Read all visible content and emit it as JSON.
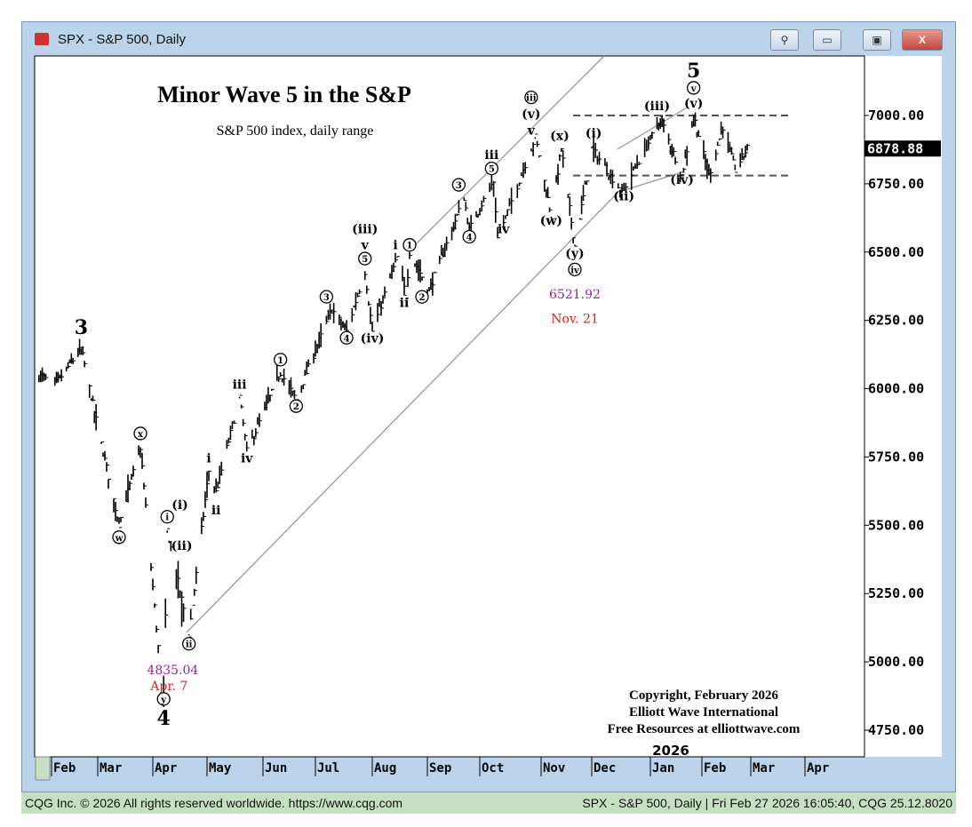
{
  "window": {
    "title": "SPX - S&P 500, Daily",
    "buttons": {
      "link": "⚲",
      "minimize": "▭",
      "maximize": "▣",
      "close": "X"
    }
  },
  "status": {
    "left": "CQG Inc. © 2026 All rights reserved worldwide. https://www.cqg.com",
    "right": "SPX - S&P 500, Daily | Fri Feb 27 2026 16:05:40, CQG 25.12.8020"
  },
  "chart_data": {
    "type": "bar",
    "title": "Minor Wave 5 in the S&P",
    "subtitle": "S&P 500 index, daily range",
    "copyright": [
      "Copyright, February 2026",
      "Elliott Wave International",
      "Free Resources at elliottwave.com"
    ],
    "year_label": "2026",
    "ylim": [
      4700,
      7200
    ],
    "yticks": [
      "4750.00",
      "5000.00",
      "5250.00",
      "5500.00",
      "5750.00",
      "6000.00",
      "6250.00",
      "6500.00",
      "6750.00",
      "7000.00"
    ],
    "last_price": "6878.88",
    "xticks": [
      "Feb",
      "Mar",
      "Apr",
      "May",
      "Jun",
      "Jul",
      "Aug",
      "Sep",
      "Oct",
      "Nov",
      "Dec",
      "Jan",
      "Feb",
      "Mar",
      "Apr"
    ],
    "pivots": [
      [
        "2025-01-27",
        6050
      ],
      [
        "2025-02-04",
        6020
      ],
      [
        "2025-02-19",
        6147
      ],
      [
        "2025-03-13",
        5505
      ],
      [
        "2025-03-25",
        5786
      ],
      [
        "2025-04-07",
        4835
      ],
      [
        "2025-04-09",
        5481
      ],
      [
        "2025-04-21",
        5101
      ],
      [
        "2025-05-02",
        5700
      ],
      [
        "2025-05-06",
        5620
      ],
      [
        "2025-05-19",
        5970
      ],
      [
        "2025-05-23",
        5770
      ],
      [
        "2025-06-11",
        6060
      ],
      [
        "2025-06-20",
        5960
      ],
      [
        "2025-07-10",
        6290
      ],
      [
        "2025-07-18",
        6210
      ],
      [
        "2025-07-28",
        6430
      ],
      [
        "2025-08-01",
        6210
      ],
      [
        "2025-08-15",
        6480
      ],
      [
        "2025-08-20",
        6340
      ],
      [
        "2025-08-22",
        6500
      ],
      [
        "2025-09-02",
        6360
      ],
      [
        "2025-09-22",
        6700
      ],
      [
        "2025-09-25",
        6580
      ],
      [
        "2025-10-08",
        6760
      ],
      [
        "2025-10-10",
        6550
      ],
      [
        "2025-10-29",
        6920
      ],
      [
        "2025-11-07",
        6630
      ],
      [
        "2025-11-13",
        6880
      ],
      [
        "2025-11-21",
        6522
      ],
      [
        "2025-12-01",
        6880
      ],
      [
        "2025-12-17",
        6720
      ],
      [
        "2026-01-07",
        6990
      ],
      [
        "2026-01-20",
        6780
      ],
      [
        "2026-01-27",
        7002
      ],
      [
        "2026-02-05",
        6780
      ],
      [
        "2026-02-13",
        6960
      ],
      [
        "2026-02-20",
        6800
      ],
      [
        "2026-02-27",
        6879
      ]
    ],
    "annotations": [
      {
        "d": "2025-02-19",
        "p": 6200,
        "t": "3",
        "s": "big"
      },
      {
        "d": "2025-04-07",
        "p": 4770,
        "t": "4",
        "s": "big"
      },
      {
        "d": "2026-01-27",
        "p": 7140,
        "t": "5",
        "s": "big"
      },
      {
        "d": "2025-03-13",
        "p": 5440,
        "t": "w",
        "s": "circ"
      },
      {
        "d": "2025-03-25",
        "p": 5820,
        "t": "x",
        "s": "circ"
      },
      {
        "d": "2025-04-07",
        "p": 4790,
        "t": "y",
        "s": "circ"
      },
      {
        "d": "2025-04-09",
        "p": 5515,
        "t": "i",
        "s": "circ"
      },
      {
        "d": "2025-04-21",
        "p": 5050,
        "t": "ii",
        "s": "circ"
      },
      {
        "d": "2025-04-16",
        "p": 5560,
        "t": "(i)",
        "s": "plain"
      },
      {
        "d": "2025-04-17",
        "p": 5410,
        "t": "(ii)",
        "s": "plain"
      },
      {
        "d": "2025-05-02",
        "p": 5730,
        "t": "i",
        "s": "plain"
      },
      {
        "d": "2025-05-06",
        "p": 5540,
        "t": "ii",
        "s": "plain"
      },
      {
        "d": "2025-05-19",
        "p": 6000,
        "t": "iii",
        "s": "plain"
      },
      {
        "d": "2025-05-23",
        "p": 5730,
        "t": "iv",
        "s": "plain"
      },
      {
        "d": "2025-06-11",
        "p": 6090,
        "t": "1",
        "s": "circ"
      },
      {
        "d": "2025-06-20",
        "p": 5920,
        "t": "2",
        "s": "circ"
      },
      {
        "d": "2025-07-07",
        "p": 6320,
        "t": "3",
        "s": "circ"
      },
      {
        "d": "2025-07-18",
        "p": 6170,
        "t": "4",
        "s": "circ"
      },
      {
        "d": "2025-07-28",
        "p": 6460,
        "t": "5",
        "s": "circ"
      },
      {
        "d": "2025-07-28",
        "p": 6510,
        "t": "v",
        "s": "plain"
      },
      {
        "d": "2025-07-28",
        "p": 6560,
        "t": "(iii)",
        "s": "plain"
      },
      {
        "d": "2025-08-01",
        "p": 6170,
        "t": "(iv)",
        "s": "plain"
      },
      {
        "d": "2025-08-14",
        "p": 6510,
        "t": "i",
        "s": "plain"
      },
      {
        "d": "2025-08-19",
        "p": 6300,
        "t": "ii",
        "s": "plain"
      },
      {
        "d": "2025-08-22",
        "p": 6510,
        "t": "1",
        "s": "circ"
      },
      {
        "d": "2025-08-29",
        "p": 6320,
        "t": "2",
        "s": "circ"
      },
      {
        "d": "2025-09-19",
        "p": 6730,
        "t": "3",
        "s": "circ"
      },
      {
        "d": "2025-09-25",
        "p": 6540,
        "t": "4",
        "s": "circ"
      },
      {
        "d": "2025-10-07",
        "p": 6790,
        "t": "5",
        "s": "circ"
      },
      {
        "d": "2025-10-07",
        "p": 6840,
        "t": "iii",
        "s": "plain"
      },
      {
        "d": "2025-10-13",
        "p": 6570,
        "t": "iv",
        "s": "plain"
      },
      {
        "d": "2025-10-27",
        "p": 6930,
        "t": "v",
        "s": "plain"
      },
      {
        "d": "2025-10-27",
        "p": 6990,
        "t": "(v)",
        "s": "plain"
      },
      {
        "d": "2025-10-27",
        "p": 7050,
        "t": "iii",
        "s": "circ"
      },
      {
        "d": "2025-11-07",
        "p": 6600,
        "t": "(w)",
        "s": "plain"
      },
      {
        "d": "2025-11-12",
        "p": 6910,
        "t": "(x)",
        "s": "plain"
      },
      {
        "d": "2025-11-21",
        "p": 6480,
        "t": "(y)",
        "s": "plain"
      },
      {
        "d": "2025-11-21",
        "p": 6420,
        "t": "iv",
        "s": "circ"
      },
      {
        "d": "2025-11-21",
        "p": 6330,
        "t": "6521.92",
        "s": "purple"
      },
      {
        "d": "2025-11-21",
        "p": 6240,
        "t": "Nov. 21",
        "s": "red"
      },
      {
        "d": "2025-04-10",
        "p": 4880,
        "t": "Apr. 7",
        "s": "red"
      },
      {
        "d": "2025-04-12",
        "p": 4810,
        "t": "4835.04",
        "s": "purple"
      },
      {
        "d": "2025-12-02",
        "p": 6920,
        "t": "(i)",
        "s": "plain"
      },
      {
        "d": "2025-12-18",
        "p": 6690,
        "t": "(ii)",
        "s": "plain"
      },
      {
        "d": "2026-01-05",
        "p": 7020,
        "t": "(iii)",
        "s": "plain"
      },
      {
        "d": "2026-01-20",
        "p": 6750,
        "t": "(iv)",
        "s": "plain"
      },
      {
        "d": "2026-01-27",
        "p": 7030,
        "t": "(v)",
        "s": "plain"
      },
      {
        "d": "2026-01-27",
        "p": 7090,
        "t": "v",
        "s": "circ"
      }
    ]
  },
  "colors": {
    "bars": "#000000",
    "lines": "#888888",
    "red": "#e02020",
    "purple": "#a020a0"
  }
}
